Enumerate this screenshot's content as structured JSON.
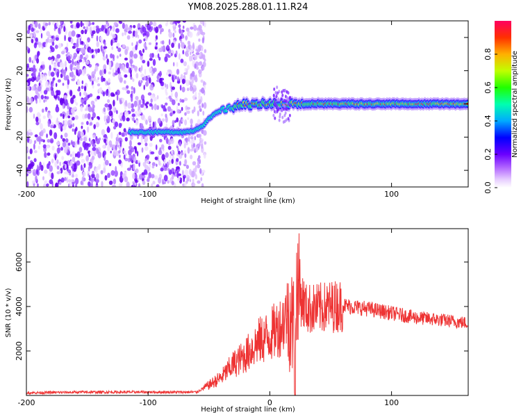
{
  "title": "YM08.2025.288.01.11.R24",
  "chart_data": [
    {
      "type": "heatmap",
      "xlabel": "Height of straight line (km)",
      "ylabel": "Frequency (Hz)",
      "xlim": [
        -200,
        163
      ],
      "ylim": [
        -50,
        50
      ],
      "x_ticks": [
        -200,
        -100,
        0,
        100
      ],
      "x_tick_labels": [
        "-200",
        "-100",
        "0",
        "100"
      ],
      "y_ticks": [
        -40,
        -20,
        0,
        20,
        40
      ],
      "y_tick_labels": [
        "-40",
        "-20",
        "0",
        "20",
        "40"
      ],
      "colorbar": {
        "label": "Normalized spectral amplitude",
        "range": [
          0,
          1
        ],
        "ticks": [
          0,
          0.2,
          0.4,
          0.6,
          0.8
        ],
        "tick_labels": [
          "0.0",
          "0.2",
          "0.4",
          "0.6",
          "0.8"
        ],
        "colors": [
          "#ffffff",
          "#cc99ff",
          "#7a1fff",
          "#1a1aff",
          "#00c8ff",
          "#00ff66",
          "#c8ff00",
          "#ffd000",
          "#ff4000",
          "#ff0050"
        ]
      },
      "ridge": {
        "x": [
          -115,
          -100,
          -90,
          -80,
          -70,
          -62,
          -55,
          -50,
          -45,
          -40,
          -35,
          -30,
          -25,
          -20,
          -15,
          -10,
          -5,
          0,
          5,
          10,
          20,
          40,
          60,
          80,
          100,
          130,
          163
        ],
        "freq": [
          -17,
          -17,
          -17,
          -17,
          -17,
          -16,
          -13,
          -9,
          -6,
          -4,
          -3,
          -2,
          -1,
          0,
          -1,
          0,
          0,
          0,
          0,
          0,
          0,
          0,
          0,
          0,
          0,
          0,
          0
        ]
      },
      "noise_region_xlim": [
        -200,
        -55
      ]
    },
    {
      "type": "line",
      "xlabel": "Height of straight line (km)",
      "ylabel": "SNR (10 * v/v)",
      "xlim": [
        -200,
        163
      ],
      "ylim": [
        0,
        7500
      ],
      "x_ticks": [
        -200,
        -100,
        0,
        100
      ],
      "x_tick_labels": [
        "-200",
        "-100",
        "0",
        "100"
      ],
      "y_ticks": [
        2000,
        4000,
        6000
      ],
      "y_tick_labels": [
        "2000",
        "4000",
        "6000"
      ],
      "series": [
        {
          "name": "SNR",
          "color": "#ee3333",
          "x": [
            -200,
            -150,
            -100,
            -60,
            -40,
            -30,
            -20,
            -10,
            0,
            10,
            15,
            20,
            21,
            22,
            25,
            30,
            40,
            50,
            60,
            80,
            100,
            120,
            140,
            163
          ],
          "y": [
            120,
            150,
            150,
            150,
            800,
            1400,
            1800,
            2400,
            2700,
            3200,
            3800,
            3000,
            100,
            5200,
            4500,
            3900,
            3900,
            4000,
            4050,
            3900,
            3700,
            3500,
            3400,
            3250
          ]
        }
      ]
    }
  ]
}
